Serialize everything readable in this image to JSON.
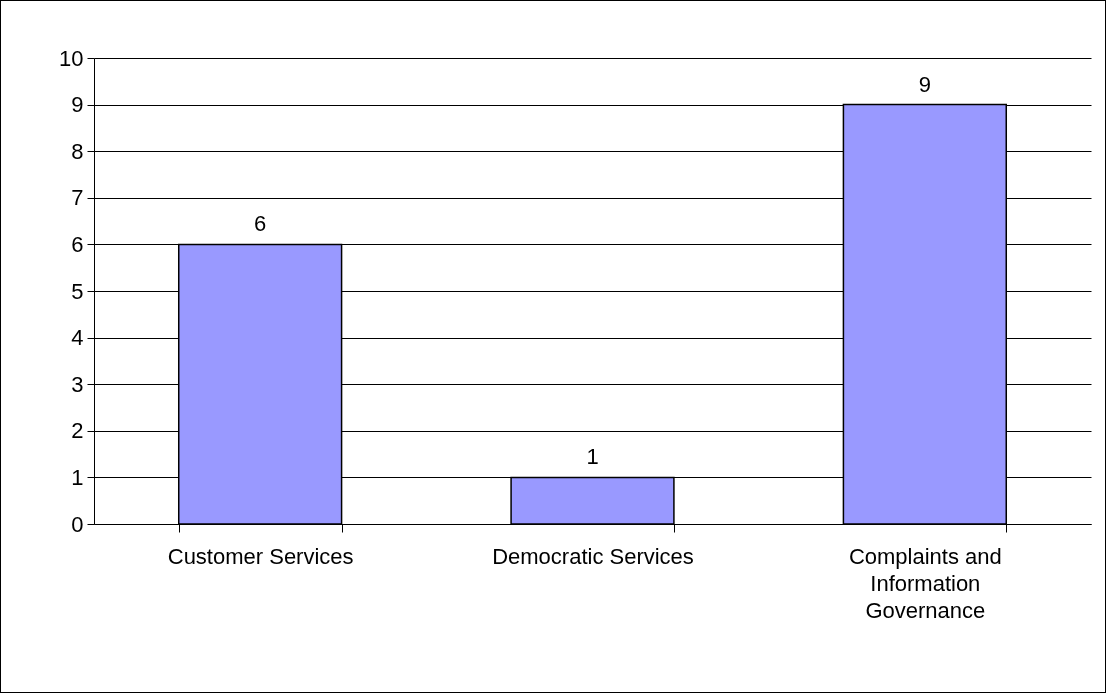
{
  "chart_data": {
    "type": "bar",
    "categories": [
      "Customer Services",
      "Democratic Services",
      "Complaints and Information Governance"
    ],
    "values": [
      6,
      1,
      9
    ],
    "color": "#9999ff",
    "ylim": [
      0,
      10
    ],
    "yticks": [
      0,
      1,
      2,
      3,
      4,
      5,
      6,
      7,
      8,
      9,
      10
    ],
    "grid": "y",
    "data_labels": true
  }
}
